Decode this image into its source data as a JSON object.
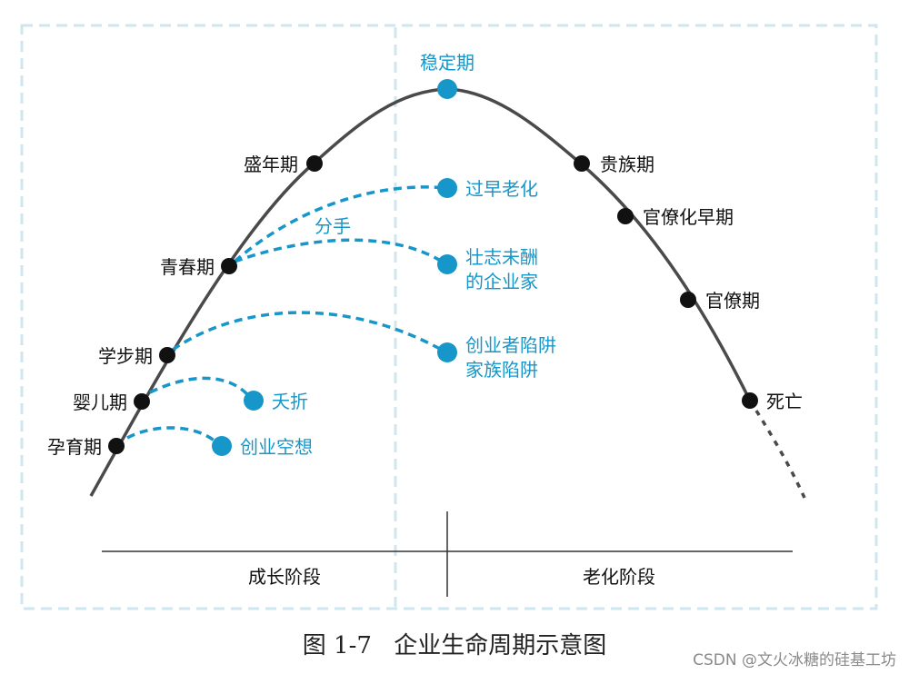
{
  "colors": {
    "curve": "#4a4a4a",
    "dark_node": "#111111",
    "accent": "#1797c9",
    "frame": "#cfe6ef"
  },
  "diagram": {
    "stages_growth": [
      {
        "id": "pregnancy",
        "label": "孕育期"
      },
      {
        "id": "infancy",
        "label": "婴儿期"
      },
      {
        "id": "toddler",
        "label": "学步期"
      },
      {
        "id": "youth",
        "label": "青春期"
      },
      {
        "id": "prime",
        "label": "盛年期"
      }
    ],
    "peak": {
      "label": "稳定期"
    },
    "stages_aging": [
      {
        "id": "aristocracy",
        "label": "贵族期"
      },
      {
        "id": "early_bureaucracy",
        "label": "官僚化早期"
      },
      {
        "id": "bureaucracy",
        "label": "官僚期"
      },
      {
        "id": "death",
        "label": "死亡"
      }
    ],
    "traps": [
      {
        "id": "premature_aging",
        "label": "过早老化"
      },
      {
        "id": "unfulfilled",
        "line1": "壮志未酬",
        "line2": "的企业家"
      },
      {
        "id": "founder_trap",
        "line1": "创业者陷阱",
        "line2": "家族陷阱"
      },
      {
        "id": "infant_death",
        "label": "夭折"
      },
      {
        "id": "startup_fantasy",
        "label": "创业空想"
      }
    ],
    "divorce_label": "分手",
    "phases": {
      "growth": "成长阶段",
      "aging": "老化阶段"
    }
  },
  "caption": {
    "figure_no": "图 1-7",
    "title": "企业生命周期示意图"
  },
  "watermark": "CSDN @文火冰糖的硅基工坊"
}
